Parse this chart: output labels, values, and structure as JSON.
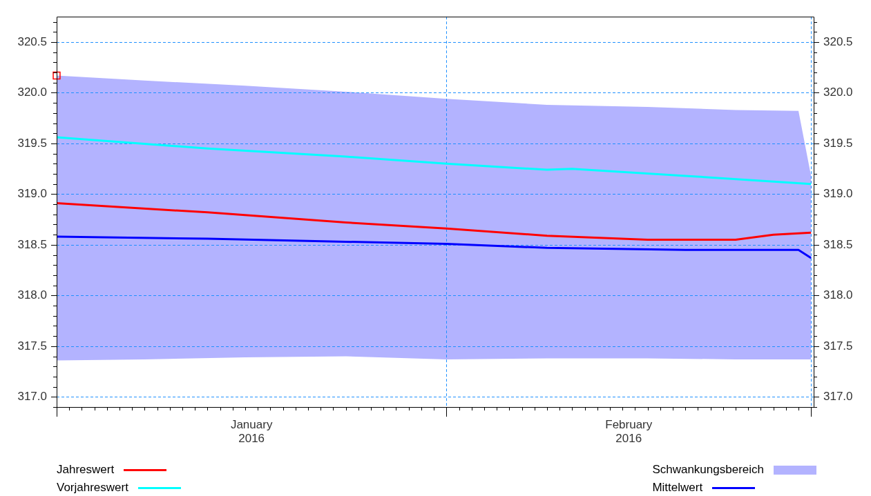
{
  "chart_data": {
    "type": "line",
    "xlim": [
      "2016-01-01",
      "2016-03-01T05:00"
    ],
    "xticks": [
      {
        "value": "2016-01-01",
        "label": null
      },
      {
        "value": "2016-01-16T12:00",
        "label": "January 2016"
      },
      {
        "value": "2016-02-01",
        "label": null
      },
      {
        "value": "2016-02-15T12:00",
        "label": "February 2016"
      },
      {
        "value": "2016-03-01",
        "label": null
      }
    ],
    "ylim": [
      316.9,
      320.75
    ],
    "yticks": [
      {
        "value": 317,
        "label": "317.0"
      },
      {
        "value": 317.5,
        "label": "317.5"
      },
      {
        "value": 318,
        "label": "318.0"
      },
      {
        "value": 318.5,
        "label": "318.5"
      },
      {
        "value": 319,
        "label": "319.0"
      },
      {
        "value": 319.5,
        "label": "319.5"
      },
      {
        "value": 320,
        "label": "320.0"
      },
      {
        "value": 320.5,
        "label": "320.5"
      }
    ],
    "y2lim": [
      316.9,
      320.75
    ],
    "y2ticks": [
      {
        "value": 317,
        "label": "317.0"
      },
      {
        "value": 317.5,
        "label": "317.5"
      },
      {
        "value": 318,
        "label": "318.0"
      },
      {
        "value": 318.5,
        "label": "318.5"
      },
      {
        "value": 319,
        "label": "319.0"
      },
      {
        "value": 319.5,
        "label": "319.5"
      },
      {
        "value": 320,
        "label": "320.0"
      },
      {
        "value": 320.5,
        "label": "320.5"
      }
    ],
    "grid": true,
    "legend": "bottom",
    "series": [
      {
        "name": "Jahreswert",
        "color": "#ff0000",
        "x": [
          "2016-01-01",
          "2016-01-13",
          "2016-01-24",
          "2016-02-01",
          "2016-02-09",
          "2016-02-17",
          "2016-02-24",
          "2016-02-27",
          "2016-03-01"
        ],
        "values": [
          318.91,
          318.82,
          318.72,
          318.66,
          318.59,
          318.55,
          318.55,
          318.6,
          318.62
        ]
      },
      {
        "name": "Vorjahreswert",
        "color": "#00ffff",
        "x": [
          "2016-01-01",
          "2016-01-13",
          "2016-01-24",
          "2016-02-01",
          "2016-02-09",
          "2016-02-11",
          "2016-02-20",
          "2016-03-01"
        ],
        "values": [
          319.56,
          319.45,
          319.37,
          319.3,
          319.24,
          319.25,
          319.18,
          319.1
        ]
      },
      {
        "name": "Schwankungsbereich",
        "color": "#b3b3ff",
        "x": [
          "2016-01-01",
          "2016-01-08",
          "2016-01-16",
          "2016-01-24",
          "2016-02-01",
          "2016-02-09",
          "2016-02-17",
          "2016-02-24",
          "2016-02-29",
          "2016-03-01"
        ],
        "values": [
          null,
          null,
          null,
          null,
          null,
          null,
          null,
          null,
          null,
          null
        ],
        "lower": [
          317.36,
          317.37,
          317.39,
          317.4,
          317.37,
          317.38,
          317.38,
          317.37,
          317.37,
          317.37
        ],
        "upper": [
          320.17,
          320.12,
          320.07,
          320.01,
          319.94,
          319.88,
          319.86,
          319.83,
          319.82,
          319.18
        ]
      },
      {
        "name": "Mittelwert",
        "color": "#0000ff",
        "x": [
          "2016-01-01",
          "2016-01-13",
          "2016-01-24",
          "2016-02-01",
          "2016-02-09",
          "2016-02-20",
          "2016-02-29",
          "2016-03-01"
        ],
        "values": [
          318.58,
          318.56,
          318.53,
          318.51,
          318.47,
          318.45,
          318.45,
          318.37
        ]
      },
      {
        "type": "scatter",
        "color": "#ff0000",
        "marker": "square",
        "x": [
          "2016-01-01"
        ],
        "values": [
          320.17
        ]
      }
    ]
  }
}
